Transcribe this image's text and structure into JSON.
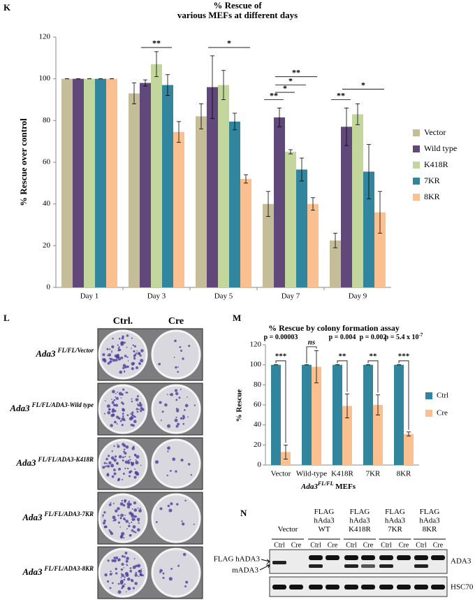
{
  "chart_data": [
    {
      "panel": "K",
      "type": "bar",
      "title": [
        "% Rescue of",
        "various MEFs at different days"
      ],
      "ylabel": "% Rescue over control",
      "categories": [
        "Day 1",
        "Day 3",
        "Day 5",
        "Day 7",
        "Day 9"
      ],
      "series": [
        {
          "name": "Vector",
          "color": "#c4bd97",
          "values": [
            100,
            93,
            82,
            40,
            22.5
          ],
          "errors": [
            0,
            5,
            6,
            6,
            3.5
          ]
        },
        {
          "name": "Wild type",
          "color": "#60497a",
          "values": [
            100,
            98,
            96,
            81.5,
            77
          ],
          "errors": [
            0,
            1.5,
            15,
            4.5,
            9
          ]
        },
        {
          "name": "K418R",
          "color": "#c3d69b",
          "values": [
            100,
            107,
            97,
            65,
            83
          ],
          "errors": [
            0,
            6,
            7,
            1,
            5
          ]
        },
        {
          "name": "7KR",
          "color": "#31859c",
          "values": [
            100,
            97,
            79.5,
            56.5,
            55.5
          ],
          "errors": [
            0,
            5,
            4,
            5.5,
            13
          ]
        },
        {
          "name": "8KR",
          "color": "#fac090",
          "values": [
            100,
            74.5,
            52,
            40,
            36
          ],
          "errors": [
            0,
            5,
            2,
            3,
            10
          ]
        }
      ],
      "significance": [
        "**",
        "*",
        "**",
        "*",
        "*",
        "**",
        "**",
        "*"
      ],
      "ylim": [
        0,
        120
      ],
      "yticks": [
        0,
        20,
        40,
        60,
        80,
        100,
        120
      ]
    },
    {
      "panel": "M",
      "type": "bar",
      "title": "% Rescue by colony formation assay",
      "ylabel": "% Rescue",
      "xlabel": {
        "base": "Ada3",
        "sup": "FL/FL",
        "rest": " MEFs"
      },
      "categories": [
        "Vector",
        "Wild-type",
        "K418R",
        "7KR",
        "8KR"
      ],
      "series": [
        {
          "name": "Ctrl",
          "color": "#31859c",
          "values": [
            100,
            100,
            100,
            100,
            100
          ],
          "errors": [
            0,
            0,
            0,
            0,
            0
          ]
        },
        {
          "name": "Cre",
          "color": "#fac090",
          "values": [
            13,
            98,
            59,
            60,
            31
          ],
          "errors": [
            7,
            16,
            12,
            10,
            2
          ]
        }
      ],
      "p_labels": [
        {
          "text": "p = 0.00003"
        },
        {
          "text": ""
        },
        {
          "text": "p = 0.004"
        },
        {
          "text": "p = 0.002"
        },
        {
          "text": "p = 5.4 x 10",
          "sup": "-7"
        }
      ],
      "significance": [
        "***",
        "ns",
        "**",
        "**",
        "***"
      ],
      "ylim": [
        0,
        120
      ],
      "yticks": [
        0,
        20,
        40,
        60,
        80,
        100,
        120
      ]
    }
  ],
  "colony_panel": {
    "panel": "L",
    "columns": [
      "Ctrl.",
      "Cre"
    ],
    "rows": [
      {
        "base": "Ada3",
        "sup": "FL/FL/Vector"
      },
      {
        "base": "Ada3",
        "sup": "FL/FL/ADA3-Wild type"
      },
      {
        "base": "Ada3",
        "sup": "FL/FL/ADA3-K418R"
      },
      {
        "base": "Ada3",
        "sup": "FL/FL/ADA3-7KR"
      },
      {
        "base": "Ada3",
        "sup": "FL/FL/ADA3-8KR"
      }
    ]
  },
  "blot_panel": {
    "panel": "N",
    "groups": [
      [
        "Vector"
      ],
      [
        "FLAG",
        "hAda3",
        "WT"
      ],
      [
        "FLAG",
        "hAda3",
        "K418R"
      ],
      [
        "FLAG",
        "hAda3",
        "7KR"
      ],
      [
        "FLAG",
        "hAda3",
        "8KR"
      ]
    ],
    "lanes": [
      "Ctrl",
      "Cre",
      "Ctrl",
      "Cre",
      "Ctrl",
      "Cre",
      "Ctrl",
      "Cre",
      "Ctrl",
      "Cre"
    ],
    "band_labels": [
      "FLAG hADA3",
      "mADA3"
    ],
    "blots": [
      "ADA3",
      "HSC70"
    ]
  }
}
